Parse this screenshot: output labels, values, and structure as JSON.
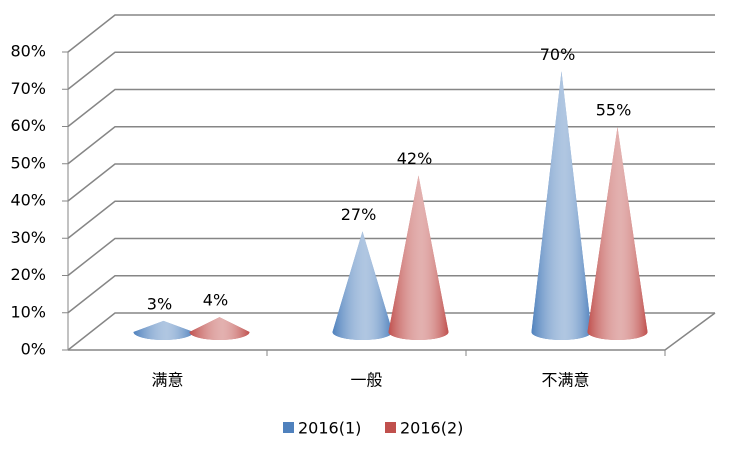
{
  "chart_data": {
    "type": "cone",
    "categories": [
      "满意",
      "一般",
      "不满意"
    ],
    "series": [
      {
        "name": "2016(1)",
        "color": "#4f81bd",
        "values": [
          3,
          27,
          70
        ],
        "value_labels": [
          "3%",
          "27%",
          "70%"
        ]
      },
      {
        "name": "2016(2)",
        "color": "#c0504d",
        "values": [
          4,
          42,
          55
        ],
        "value_labels": [
          "4%",
          "42%",
          "55%"
        ]
      }
    ],
    "ylim": [
      0,
      80
    ],
    "yticks": [
      {
        "value": 0,
        "label": "0%"
      },
      {
        "value": 10,
        "label": "10%"
      },
      {
        "value": 20,
        "label": "20%"
      },
      {
        "value": 30,
        "label": "30%"
      },
      {
        "value": 40,
        "label": "40%"
      },
      {
        "value": 50,
        "label": "50%"
      },
      {
        "value": 60,
        "label": "60%"
      },
      {
        "value": 70,
        "label": "70%"
      },
      {
        "value": 80,
        "label": "80%"
      }
    ],
    "grid": true,
    "legend": "bottom"
  }
}
